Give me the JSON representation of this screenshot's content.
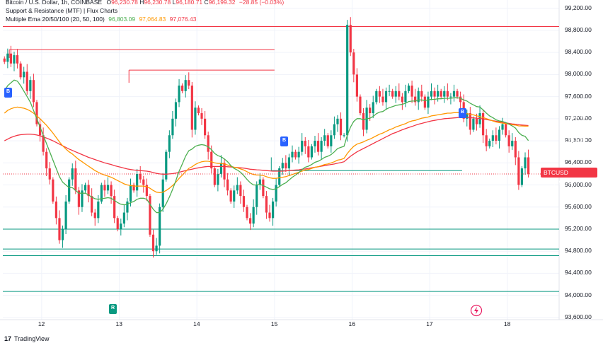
{
  "header": {
    "symbol_line": "Bitcoin / U.S. Dollar, 1h, COINBASE",
    "ohlc": {
      "o_label": "O",
      "o": "96,230.78",
      "h_label": "H",
      "h": "96,230.78",
      "l_label": "L",
      "l": "96,180.71",
      "c_label": "C",
      "c": "96,199.32",
      "change": "−28.85 (−0.03%)"
    },
    "indicator1": "Support & Resistance (MTF) | Flux Charts",
    "indicator2": "Multiple Ema 20/50/100 (20, 50, 100)",
    "ema_values": [
      "96,803.09",
      "97,064.83",
      "97,076.43"
    ]
  },
  "colors": {
    "up": "#089981",
    "down": "#f23645",
    "ema20": "#4caf50",
    "ema50": "#ff9800",
    "ema100": "#f23645",
    "support": "#089981",
    "resistance": "#f23645",
    "signal": "#2962ff"
  },
  "price_labels": [
    {
      "value": "97,076.43",
      "color": "#f23645"
    },
    {
      "value": "97,064.83",
      "color": "#ff9800"
    },
    {
      "value": "96,803.09",
      "color": "#4caf50"
    }
  ],
  "ticker_tag": {
    "symbol": "BTCUSD",
    "value": "96,199.32"
  },
  "markers": [
    {
      "label": "B",
      "kind": "signal"
    },
    {
      "label": "B",
      "kind": "signal"
    },
    {
      "label": "B",
      "kind": "signal"
    },
    {
      "label": "R",
      "kind": "reversal"
    }
  ],
  "footer": {
    "brand": "TradingView"
  },
  "chart_data": {
    "type": "candlestick",
    "y_ticks": [
      93600,
      94000,
      94400,
      94800,
      95200,
      95600,
      96000,
      96400,
      96800,
      97200,
      97600,
      98000,
      98400,
      98800,
      99200
    ],
    "y_tick_labels": [
      "93,600.00",
      "94,000.00",
      "94,400.00",
      "94,800.00",
      "95,200.00",
      "95,600.00",
      "96,000.00",
      "96,400.00",
      "96,800.00",
      "97,200.00",
      "97,600.00",
      "98,000.00",
      "98,400.00",
      "98,800.00",
      "99,200.00"
    ],
    "ylim": [
      93560,
      99350
    ],
    "x_ticks": [
      "12",
      "13",
      "14",
      "15",
      "16",
      "17",
      "18"
    ],
    "x_tick_hours": [
      12,
      36,
      60,
      84,
      108,
      132,
      156
    ],
    "x_range_hours": [
      0,
      172
    ],
    "candles_start_hour": 0,
    "closes": [
      98230,
      98380,
      98200,
      98350,
      98200,
      97950,
      98050,
      97700,
      97900,
      97500,
      97100,
      96900,
      96600,
      96300,
      96100,
      95700,
      95400,
      95000,
      95200,
      95700,
      96100,
      96300,
      95900,
      95600,
      95900,
      96000,
      95800,
      95500,
      95400,
      95700,
      96000,
      95900,
      96000,
      95800,
      95400,
      95200,
      95300,
      95500,
      95700,
      96000,
      95900,
      96200,
      96100,
      96000,
      95800,
      95100,
      94800,
      94900,
      95600,
      96100,
      96600,
      96900,
      97200,
      97500,
      97800,
      97700,
      97900,
      97800,
      97000,
      97400,
      97300,
      97200,
      96900,
      96600,
      96300,
      96000,
      96200,
      96400,
      96100,
      95900,
      95700,
      95900,
      96000,
      95800,
      95600,
      95400,
      95300,
      95600,
      96000,
      96100,
      95800,
      95500,
      95400,
      95700,
      96000,
      96300,
      96400,
      96300,
      96500,
      96600,
      96500,
      96600,
      96800,
      96700,
      96500,
      96700,
      96800,
      96600,
      96800,
      96900,
      96700,
      96900,
      97100,
      97200,
      96900,
      96900,
      98900,
      98400,
      98000,
      97600,
      97300,
      97000,
      97400,
      97300,
      97500,
      97700,
      97600,
      97500,
      97700,
      97700,
      97600,
      97700,
      97600,
      97500,
      97700,
      97800,
      97600,
      97500,
      97700,
      97600,
      97400,
      97600,
      97700,
      97600,
      97700,
      97600,
      97700,
      97600,
      97600,
      97700,
      97600,
      97500,
      97200,
      97300,
      97000,
      97200,
      97100,
      97300,
      96900,
      96700,
      96800,
      96900,
      96800,
      97000,
      97100,
      96900,
      96700,
      96800,
      96500,
      96000,
      96300,
      96500,
      96200
    ],
    "ema20": [
      97700,
      97800,
      97850,
      97900,
      97880,
      97800,
      97700,
      97600,
      97500,
      97350,
      97200,
      97050,
      96900,
      96750,
      96600,
      96450,
      96300,
      96150,
      96050,
      96000,
      95950,
      95950,
      95900,
      95850,
      95850,
      95850,
      95820,
      95780,
      95750,
      95740,
      95750,
      95760,
      95770,
      95760,
      95720,
      95680,
      95650,
      95640,
      95650,
      95680,
      95700,
      95740,
      95760,
      95760,
      95740,
      95650,
      95560,
      95500,
      95500,
      95560,
      95660,
      95780,
      95920,
      96080,
      96250,
      96380,
      96520,
      96620,
      96650,
      96700,
      96720,
      96730,
      96720,
      96690,
      96640,
      96570,
      96530,
      96510,
      96470,
      96420,
      96350,
      96300,
      96270,
      96230,
      96170,
      96100,
      96040,
      96000,
      96000,
      96010,
      95990,
      95960,
      95930,
      95920,
      95930,
      95970,
      96010,
      96040,
      96090,
      96140,
      96180,
      96220,
      96280,
      96320,
      96340,
      96370,
      96410,
      96430,
      96460,
      96500,
      96520,
      96550,
      96600,
      96660,
      96680,
      96700,
      96900,
      97050,
      97150,
      97200,
      97200,
      97180,
      97200,
      97210,
      97240,
      97290,
      97320,
      97330,
      97370,
      97400,
      97420,
      97440,
      97450,
      97460,
      97480,
      97510,
      97520,
      97520,
      97540,
      97540,
      97530,
      97540,
      97550,
      97550,
      97560,
      97560,
      97570,
      97570,
      97570,
      97580,
      97580,
      97570,
      97540,
      97520,
      97480,
      97450,
      97420,
      97410,
      97360,
      97300,
      97250,
      97220,
      97180,
      97160,
      97150,
      97130,
      97100,
      97070,
      97030,
      96950,
      96900,
      96880,
      96803
    ],
    "ema50": [
      97300,
      97350,
      97380,
      97400,
      97410,
      97400,
      97390,
      97370,
      97340,
      97300,
      97250,
      97200,
      97140,
      97080,
      97010,
      96940,
      96860,
      96780,
      96710,
      96650,
      96600,
      96560,
      96510,
      96460,
      96420,
      96380,
      96340,
      96300,
      96260,
      96230,
      96200,
      96180,
      96160,
      96140,
      96110,
      96080,
      96050,
      96020,
      96000,
      95990,
      95980,
      95980,
      95980,
      95980,
      95970,
      95940,
      95900,
      95870,
      95860,
      95870,
      95900,
      95940,
      95990,
      96050,
      96120,
      96180,
      96240,
      96300,
      96330,
      96370,
      96400,
      96420,
      96430,
      96430,
      96420,
      96400,
      96390,
      96390,
      96380,
      96360,
      96340,
      96320,
      96310,
      96290,
      96270,
      96240,
      96210,
      96190,
      96180,
      96180,
      96170,
      96150,
      96130,
      96120,
      96120,
      96130,
      96140,
      96150,
      96170,
      96190,
      96210,
      96230,
      96250,
      96270,
      96280,
      96300,
      96320,
      96330,
      96350,
      96370,
      96380,
      96400,
      96420,
      96450,
      96460,
      96480,
      96570,
      96640,
      96700,
      96740,
      96760,
      96780,
      96810,
      96830,
      96860,
      96890,
      96920,
      96940,
      96970,
      97000,
      97020,
      97050,
      97070,
      97090,
      97110,
      97140,
      97160,
      97170,
      97190,
      97210,
      97220,
      97230,
      97250,
      97260,
      97270,
      97280,
      97290,
      97300,
      97300,
      97310,
      97310,
      97310,
      97300,
      97290,
      97280,
      97270,
      97250,
      97240,
      97220,
      97200,
      97180,
      97160,
      97140,
      97130,
      97120,
      97110,
      97100,
      97090,
      97085,
      97070,
      97068,
      97066,
      97065
    ],
    "ema100": [
      96800,
      96830,
      96860,
      96880,
      96900,
      96910,
      96915,
      96920,
      96920,
      96915,
      96905,
      96890,
      96870,
      96850,
      96825,
      96800,
      96770,
      96740,
      96710,
      96680,
      96650,
      96625,
      96600,
      96575,
      96550,
      96525,
      96500,
      96480,
      96460,
      96440,
      96420,
      96400,
      96385,
      96370,
      96350,
      96335,
      96320,
      96305,
      96290,
      96280,
      96270,
      96265,
      96260,
      96255,
      96250,
      96240,
      96225,
      96210,
      96200,
      96195,
      96195,
      96200,
      96205,
      96215,
      96230,
      96245,
      96260,
      96275,
      96285,
      96300,
      96310,
      96320,
      96330,
      96335,
      96335,
      96335,
      96335,
      96335,
      96335,
      96330,
      96325,
      96320,
      96315,
      96310,
      96305,
      96295,
      96285,
      96280,
      96275,
      96270,
      96265,
      96260,
      96255,
      96250,
      96250,
      96250,
      96250,
      96255,
      96260,
      96265,
      96270,
      96275,
      96285,
      96290,
      96300,
      96310,
      96320,
      96330,
      96340,
      96350,
      96360,
      96370,
      96380,
      96395,
      96405,
      96420,
      96470,
      96520,
      96560,
      96600,
      96630,
      96660,
      96690,
      96720,
      96750,
      96780,
      96810,
      96840,
      96870,
      96900,
      96930,
      96950,
      96975,
      97000,
      97020,
      97040,
      97060,
      97080,
      97100,
      97115,
      97130,
      97145,
      97160,
      97170,
      97180,
      97190,
      97200,
      97205,
      97210,
      97215,
      97220,
      97225,
      97225,
      97225,
      97220,
      97215,
      97210,
      97205,
      97195,
      97185,
      97175,
      97165,
      97155,
      97145,
      97135,
      97125,
      97115,
      97105,
      97100,
      97090,
      97085,
      97080,
      97076
    ],
    "resistance_levels": [
      {
        "price": 98870,
        "from_hour": 0,
        "to_hour": 172
      },
      {
        "price": 98450,
        "from_hour": 2,
        "to_hour": 84
      },
      {
        "price": 98080,
        "from_hour": 39,
        "to_hour": 84
      }
    ],
    "support_levels": [
      {
        "price": 96260,
        "from_hour": 83,
        "to_hour": 142
      },
      {
        "price": 95200,
        "from_hour": 0,
        "to_hour": 172
      },
      {
        "price": 94840,
        "from_hour": 0,
        "to_hour": 172
      },
      {
        "price": 94720,
        "from_hour": 0,
        "to_hour": 172
      },
      {
        "price": 94070,
        "from_hour": 0,
        "to_hour": 172
      }
    ],
    "last_price": 96199.32,
    "grid": true
  }
}
